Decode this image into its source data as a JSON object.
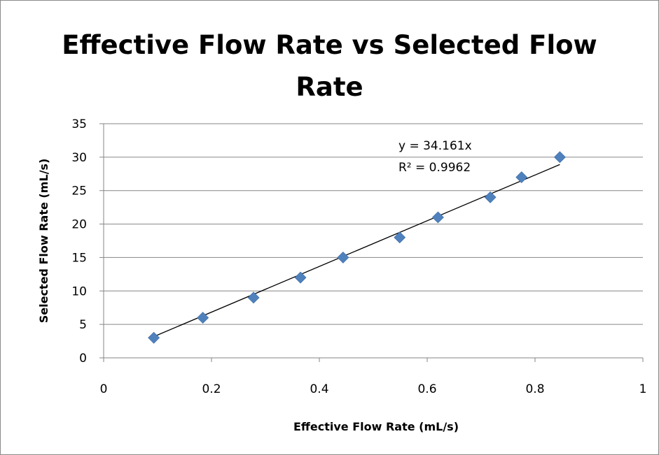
{
  "chart_data": {
    "type": "scatter",
    "title_lines": [
      "Effective Flow Rate vs Selected Flow",
      "Rate"
    ],
    "xlabel": "Effective Flow Rate (mL/s)",
    "ylabel": "Selected Flow Rate (mL/s)",
    "xlim": [
      0,
      1
    ],
    "ylim": [
      0,
      35
    ],
    "xticks": [
      0,
      0.2,
      0.4,
      0.6,
      0.8,
      1
    ],
    "xtick_labels": [
      "0",
      "0.2",
      "0.4",
      "0.6",
      "0.8",
      "1"
    ],
    "yticks": [
      0,
      5,
      10,
      15,
      20,
      25,
      30,
      35
    ],
    "ytick_labels": [
      "0",
      "5",
      "10",
      "15",
      "20",
      "25",
      "30",
      "35"
    ],
    "grid": "horizontal",
    "legend": "none",
    "marker": "diamond",
    "marker_color": "#4F81BD",
    "series": [
      {
        "x": [
          0.093,
          0.184,
          0.278,
          0.365,
          0.444,
          0.549,
          0.62,
          0.717,
          0.775,
          0.846
        ],
        "y": [
          3,
          6,
          9,
          12,
          15,
          18,
          21,
          24,
          27,
          30
        ]
      }
    ],
    "trendline": {
      "slope": 34.161,
      "intercept": 0,
      "x_range": [
        0.093,
        0.846
      ],
      "color": "#000000",
      "equation": "y = 34.161x",
      "r_squared": "R² = 0.9962"
    }
  }
}
